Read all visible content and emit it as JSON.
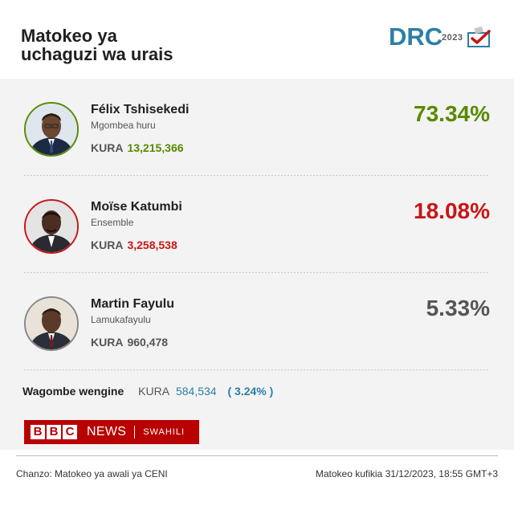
{
  "header": {
    "title_line1": "Matokeo ya",
    "title_line2": "uchaguzi wa urais",
    "logo_text": "DRC",
    "logo_year": "2023"
  },
  "votes_label": "KURA",
  "candidates": [
    {
      "name": "Félix Tshisekedi",
      "party": "Mgombea huru",
      "votes": "13,215,366",
      "percent": "73.34%",
      "color": "#588a00"
    },
    {
      "name": "Moïse Katumbi",
      "party": "Ensemble",
      "votes": "3,258,538",
      "percent": "18.08%",
      "color": "#c81616"
    },
    {
      "name": "Martin Fayulu",
      "party": "Lamukafayulu",
      "votes": "960,478",
      "percent": "5.33%",
      "color": "#555555"
    }
  ],
  "others": {
    "label": "Wagombe wengine",
    "votes": "584,534",
    "percent": "( 3.24% )",
    "color": "#2b7fa6"
  },
  "branding": {
    "b1": "B",
    "b2": "B",
    "b3": "C",
    "news": "NEWS",
    "service": "SWAHILI",
    "color": "#b80000"
  },
  "footer": {
    "source": "Chanzo: Matokeo ya awali ya CENI",
    "updated": "Matokeo kufikia 31/12/2023, 18:55 GMT+3"
  }
}
